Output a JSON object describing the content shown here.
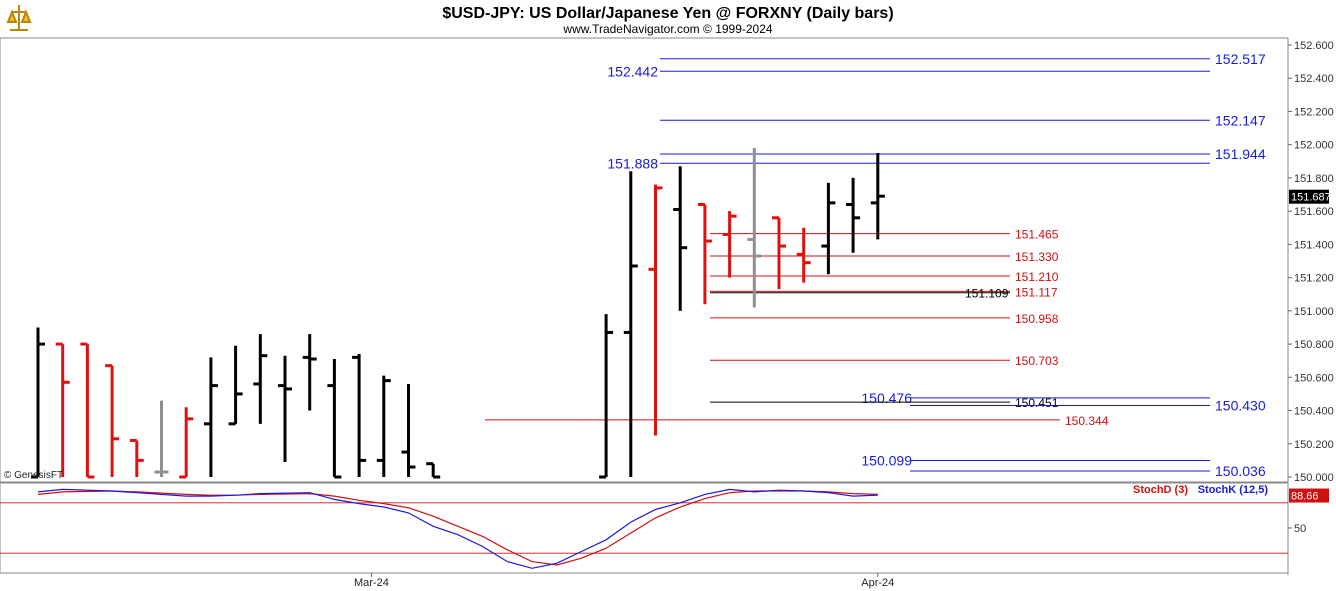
{
  "header": {
    "title": "$USD-JPY:  US Dollar/Japanese Yen @ FORXNY  (Daily bars)",
    "subtitle": "www.TradeNavigator.com © 1999-2024",
    "copyright": "© GenesisFT"
  },
  "colors": {
    "up": "#000000",
    "down": "#e01010",
    "neutral": "#909090",
    "blue_level": "#1a1adc",
    "red_level": "#d01010",
    "stochD": "#d01010",
    "stochK": "#1a1adc"
  },
  "chart_data": {
    "type": "ohlc",
    "price_axis": {
      "min": 150.0,
      "max": 152.6,
      "ticks": [
        "152.600",
        "152.400",
        "152.200",
        "152.000",
        "151.800",
        "151.600",
        "151.400",
        "151.200",
        "151.000",
        "150.800",
        "150.600",
        "150.400",
        "150.200",
        "150.000"
      ],
      "last_price": "151.687"
    },
    "bars": [
      {
        "i": 0,
        "o": 150.0,
        "h": 150.9,
        "l": 150.0,
        "c": 150.8,
        "col": "up"
      },
      {
        "i": 1,
        "o": 150.8,
        "h": 150.8,
        "l": 150.0,
        "c": 150.57,
        "col": "down"
      },
      {
        "i": 2,
        "o": 150.8,
        "h": 150.8,
        "l": 150.0,
        "c": 150.0,
        "col": "down"
      },
      {
        "i": 3,
        "o": 150.67,
        "h": 150.67,
        "l": 150.0,
        "c": 150.23,
        "col": "down"
      },
      {
        "i": 4,
        "o": 150.22,
        "h": 150.22,
        "l": 150.0,
        "c": 150.1,
        "col": "down"
      },
      {
        "i": 5,
        "o": 150.03,
        "h": 150.46,
        "l": 150.0,
        "c": 150.03,
        "col": "neutral"
      },
      {
        "i": 6,
        "o": 150.0,
        "h": 150.42,
        "l": 150.0,
        "c": 150.35,
        "col": "down"
      },
      {
        "i": 7,
        "o": 150.32,
        "h": 150.72,
        "l": 150.0,
        "c": 150.55,
        "col": "up"
      },
      {
        "i": 8,
        "o": 150.32,
        "h": 150.79,
        "l": 150.32,
        "c": 150.5,
        "col": "up"
      },
      {
        "i": 9,
        "o": 150.56,
        "h": 150.86,
        "l": 150.32,
        "c": 150.73,
        "col": "up"
      },
      {
        "i": 10,
        "o": 150.55,
        "h": 150.73,
        "l": 150.09,
        "c": 150.53,
        "col": "up"
      },
      {
        "i": 11,
        "o": 150.72,
        "h": 150.86,
        "l": 150.4,
        "c": 150.71,
        "col": "up"
      },
      {
        "i": 12,
        "o": 150.55,
        "h": 150.71,
        "l": 150.0,
        "c": 150.0,
        "col": "up"
      },
      {
        "i": 13,
        "o": 150.72,
        "h": 150.74,
        "l": 150.0,
        "c": 150.1,
        "col": "up"
      },
      {
        "i": 14,
        "o": 150.1,
        "h": 150.61,
        "l": 150.0,
        "c": 150.58,
        "col": "up"
      },
      {
        "i": 15,
        "o": 150.15,
        "h": 150.56,
        "l": 150.0,
        "c": 150.06,
        "col": "up"
      },
      {
        "i": 16,
        "o": 150.08,
        "h": 150.08,
        "l": 150.0,
        "c": 150.0,
        "col": "up"
      },
      {
        "i": 23,
        "o": 150.0,
        "h": 150.98,
        "l": 150.0,
        "c": 150.87,
        "col": "up"
      },
      {
        "i": 24,
        "o": 150.87,
        "h": 151.84,
        "l": 150.0,
        "c": 151.27,
        "col": "up"
      },
      {
        "i": 25,
        "o": 151.25,
        "h": 151.76,
        "l": 150.25,
        "c": 151.74,
        "col": "down"
      },
      {
        "i": 26,
        "o": 151.61,
        "h": 151.87,
        "l": 151.0,
        "c": 151.38,
        "col": "up"
      },
      {
        "i": 27,
        "o": 151.64,
        "h": 151.64,
        "l": 151.04,
        "c": 151.42,
        "col": "down"
      },
      {
        "i": 28,
        "o": 151.46,
        "h": 151.6,
        "l": 151.2,
        "c": 151.57,
        "col": "down"
      },
      {
        "i": 29,
        "o": 151.43,
        "h": 151.98,
        "l": 151.02,
        "c": 151.33,
        "col": "neutral"
      },
      {
        "i": 30,
        "o": 151.56,
        "h": 151.56,
        "l": 151.13,
        "c": 151.39,
        "col": "down"
      },
      {
        "i": 31,
        "o": 151.34,
        "h": 151.5,
        "l": 151.17,
        "c": 151.29,
        "col": "down"
      },
      {
        "i": 32,
        "o": 151.39,
        "h": 151.77,
        "l": 151.22,
        "c": 151.65,
        "col": "up"
      },
      {
        "i": 33,
        "o": 151.64,
        "h": 151.8,
        "l": 151.35,
        "c": 151.56,
        "col": "up"
      },
      {
        "i": 34,
        "o": 151.65,
        "h": 151.95,
        "l": 151.43,
        "c": 151.69,
        "col": "up"
      }
    ],
    "levels": [
      {
        "value": 152.517,
        "label": "152.517",
        "color": "blue",
        "x0": 660,
        "x1": 1210,
        "lx": 1215,
        "anchor": "start"
      },
      {
        "value": 152.442,
        "label": "152.442",
        "color": "blue",
        "x0": 660,
        "x1": 1210,
        "lx": 658,
        "anchor": "end"
      },
      {
        "value": 152.147,
        "label": "152.147",
        "color": "blue",
        "x0": 660,
        "x1": 1210,
        "lx": 1215,
        "anchor": "start"
      },
      {
        "value": 151.944,
        "label": "151.944",
        "color": "blue",
        "x0": 660,
        "x1": 1210,
        "lx": 1215,
        "anchor": "start"
      },
      {
        "value": 151.888,
        "label": "151.888",
        "color": "blue",
        "x0": 660,
        "x1": 1210,
        "lx": 658,
        "anchor": "end"
      },
      {
        "value": 151.465,
        "label": "151.465",
        "color": "red",
        "x0": 710,
        "x1": 1010,
        "lx": 1015,
        "anchor": "start"
      },
      {
        "value": 151.33,
        "label": "151.330",
        "color": "red",
        "x0": 710,
        "x1": 1010,
        "lx": 1015,
        "anchor": "start"
      },
      {
        "value": 151.21,
        "label": "151.210",
        "color": "red",
        "x0": 710,
        "x1": 1010,
        "lx": 1015,
        "anchor": "start"
      },
      {
        "value": 151.117,
        "label": "151.117",
        "color": "red",
        "x0": 710,
        "x1": 1010,
        "lx": 1015,
        "anchor": "start"
      },
      {
        "value": 151.109,
        "label": "151.109",
        "color": "black",
        "x0": 710,
        "x1": 1010,
        "lx": 965,
        "anchor": "start"
      },
      {
        "value": 150.958,
        "label": "150.958",
        "color": "red",
        "x0": 710,
        "x1": 1010,
        "lx": 1015,
        "anchor": "start"
      },
      {
        "value": 150.703,
        "label": "150.703",
        "color": "red",
        "x0": 710,
        "x1": 1010,
        "lx": 1015,
        "anchor": "start"
      },
      {
        "value": 150.476,
        "label": "150.476",
        "color": "blue",
        "x0": 910,
        "x1": 1210,
        "lx": 912,
        "anchor": "end"
      },
      {
        "value": 150.451,
        "label": "150.451",
        "color": "black",
        "x0": 710,
        "x1": 1010,
        "lx": 1015,
        "anchor": "start"
      },
      {
        "value": 150.43,
        "label": "150.430",
        "color": "blue",
        "x0": 910,
        "x1": 1210,
        "lx": 1215,
        "anchor": "start"
      },
      {
        "value": 150.344,
        "label": "150.344",
        "color": "red",
        "x0": 485,
        "x1": 1060,
        "lx": 1065,
        "anchor": "start"
      },
      {
        "value": 150.099,
        "label": "150.099",
        "color": "blue",
        "x0": 910,
        "x1": 1210,
        "lx": 912,
        "anchor": "end"
      },
      {
        "value": 150.036,
        "label": "150.036",
        "color": "blue",
        "x0": 910,
        "x1": 1210,
        "lx": 1215,
        "anchor": "start"
      }
    ],
    "dates": [
      {
        "label": "Mar-24",
        "bar": 13.5
      },
      {
        "label": "Apr-24",
        "bar": 34
      }
    ],
    "stochastic": {
      "ylim": [
        0,
        100
      ],
      "tick": "50",
      "lines": [
        80,
        20
      ],
      "last": "88.66",
      "labelD": "StochD (3)",
      "labelK": "StochK (12,5)",
      "K": [
        [
          0,
          93
        ],
        [
          1,
          96
        ],
        [
          3,
          94
        ],
        [
          4,
          92
        ],
        [
          6,
          88
        ],
        [
          7,
          88
        ],
        [
          8,
          89
        ],
        [
          9,
          91
        ],
        [
          11,
          92
        ],
        [
          12,
          84
        ],
        [
          13,
          79
        ],
        [
          14,
          75
        ],
        [
          15,
          68
        ],
        [
          16,
          52
        ],
        [
          17,
          42
        ],
        [
          18,
          28
        ],
        [
          19,
          10
        ],
        [
          20,
          2
        ],
        [
          21,
          8
        ],
        [
          22,
          22
        ],
        [
          23,
          36
        ],
        [
          24,
          57
        ],
        [
          25,
          72
        ],
        [
          26,
          80
        ],
        [
          27,
          90
        ],
        [
          28,
          96
        ],
        [
          29,
          93
        ],
        [
          30,
          95
        ],
        [
          31,
          94
        ],
        [
          32,
          92
        ],
        [
          33,
          88
        ],
        [
          34,
          89
        ]
      ],
      "D": [
        [
          0,
          90
        ],
        [
          1,
          93
        ],
        [
          3,
          94
        ],
        [
          4,
          93
        ],
        [
          6,
          90
        ],
        [
          7,
          89
        ],
        [
          8,
          89
        ],
        [
          9,
          90
        ],
        [
          11,
          91
        ],
        [
          12,
          88
        ],
        [
          13,
          83
        ],
        [
          14,
          79
        ],
        [
          15,
          74
        ],
        [
          16,
          64
        ],
        [
          17,
          52
        ],
        [
          18,
          40
        ],
        [
          19,
          24
        ],
        [
          20,
          10
        ],
        [
          21,
          6
        ],
        [
          22,
          14
        ],
        [
          23,
          26
        ],
        [
          24,
          44
        ],
        [
          25,
          62
        ],
        [
          26,
          75
        ],
        [
          27,
          85
        ],
        [
          28,
          92
        ],
        [
          29,
          94
        ],
        [
          30,
          94
        ],
        [
          31,
          94
        ],
        [
          32,
          93
        ],
        [
          33,
          91
        ],
        [
          34,
          90
        ]
      ]
    }
  }
}
